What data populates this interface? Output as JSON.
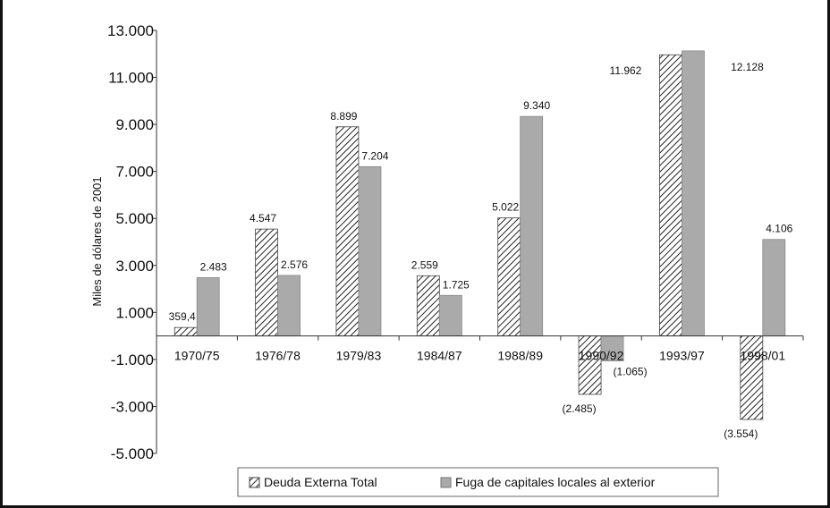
{
  "chart_data": {
    "type": "bar",
    "ylabel": "Miles de dólares de 2001",
    "ylim": [
      -5000,
      13000
    ],
    "yticks": [
      13000,
      11000,
      9000,
      7000,
      5000,
      3000,
      1000,
      -1000,
      -3000,
      -5000
    ],
    "ytick_labels": [
      "13.000",
      "11.000",
      "9.000",
      "7.000",
      "5.000",
      "3.000",
      "1.000",
      "-1.000",
      "-3.000",
      "-5.000"
    ],
    "categories": [
      "1970/75",
      "1976/78",
      "1979/83",
      "1984/87",
      "1988/89",
      "1990/92",
      "1993/97",
      "1998/01"
    ],
    "series": [
      {
        "name": "Deuda Externa Total",
        "pattern": "hatched",
        "values": [
          359.4,
          4547,
          8899,
          2559,
          5022,
          -2485,
          11962,
          -3554
        ],
        "labels": [
          "359,4",
          "4.547",
          "8.899",
          "2.559",
          "5.022",
          "(2.485)",
          "11.962",
          "(3.554)"
        ]
      },
      {
        "name": "Fuga de capitales locales al exterior",
        "color": "#aaaaaa",
        "values": [
          2483,
          2576,
          7204,
          1725,
          9340,
          -1065,
          12128,
          4106
        ],
        "labels": [
          "2.483",
          "2.576",
          "7.204",
          "1.725",
          "9.340",
          "(1.065)",
          "12.128",
          "4.106"
        ]
      }
    ],
    "grid": false,
    "legend": "bottom"
  }
}
